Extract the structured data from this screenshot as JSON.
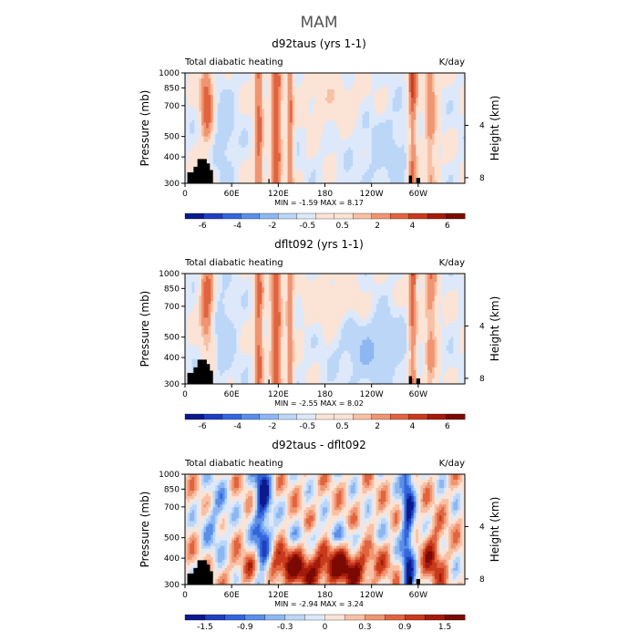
{
  "figure_title": "MAM",
  "colors": {
    "scale": [
      "#0a1a8c",
      "#1f3fbf",
      "#3366dd",
      "#5a8ee8",
      "#8db7f2",
      "#bcd6f7",
      "#dde9fa",
      "#fbe3d5",
      "#f8c0a4",
      "#f09572",
      "#e0643f",
      "#c83a1c",
      "#a51b0b",
      "#7a0a02"
    ],
    "ocean": "#ffffff",
    "terrain": "#000000"
  },
  "chart_data": [
    {
      "type": "heatmap",
      "title": "d92taus (yrs 1-1)",
      "subtitle_left": "Total diabatic heating",
      "subtitle_right": "K/day",
      "xlabel": "",
      "ylabel": "Pressure  (mb)",
      "ylabel_right": "Height  (km)",
      "x_ticks": [
        "0",
        "60E",
        "120E",
        "180",
        "120W",
        "60W"
      ],
      "x_tick_values": [
        0,
        60,
        120,
        180,
        240,
        300
      ],
      "xlim": [
        0,
        360
      ],
      "y_ticks": [
        "300",
        "400",
        "500",
        "700",
        "850",
        "1000"
      ],
      "y_tick_values": [
        300,
        400,
        500,
        700,
        850,
        1000
      ],
      "ylim": [
        1000,
        300
      ],
      "right_ticks": [
        "8",
        "4"
      ],
      "right_tick_values": [
        8,
        4
      ],
      "stats": "MIN =   -1.59   MAX =    8.17",
      "min": -1.59,
      "max": 8.17,
      "colorbar_labels": [
        "-6",
        "-4",
        "-2",
        "-0.5",
        "0.5",
        "2",
        "4",
        "6"
      ],
      "colorbar_levels": [
        -7,
        -6,
        -5,
        -4,
        -3,
        -2,
        -1,
        -0.5,
        0.5,
        1,
        2,
        3,
        4,
        5,
        6,
        7
      ],
      "heating_centers_lon": [
        28,
        95,
        117,
        135,
        295,
        315
      ]
    },
    {
      "type": "heatmap",
      "title": "dflt092 (yrs 1-1)",
      "subtitle_left": "Total diabatic heating",
      "subtitle_right": "K/day",
      "xlabel": "",
      "ylabel": "Pressure  (mb)",
      "ylabel_right": "Height  (km)",
      "x_ticks": [
        "0",
        "60E",
        "120E",
        "180",
        "120W",
        "60W"
      ],
      "x_tick_values": [
        0,
        60,
        120,
        180,
        240,
        300
      ],
      "xlim": [
        0,
        360
      ],
      "y_ticks": [
        "300",
        "400",
        "500",
        "700",
        "850",
        "1000"
      ],
      "y_tick_values": [
        300,
        400,
        500,
        700,
        850,
        1000
      ],
      "ylim": [
        1000,
        300
      ],
      "right_ticks": [
        "8",
        "4"
      ],
      "right_tick_values": [
        8,
        4
      ],
      "stats": "MIN =   -2.55   MAX =    8.02",
      "min": -2.55,
      "max": 8.02,
      "colorbar_labels": [
        "-6",
        "-4",
        "-2",
        "-0.5",
        "0.5",
        "2",
        "4",
        "6"
      ],
      "colorbar_levels": [
        -7,
        -6,
        -5,
        -4,
        -3,
        -2,
        -1,
        -0.5,
        0.5,
        1,
        2,
        3,
        4,
        5,
        6,
        7
      ],
      "heating_centers_lon": [
        28,
        95,
        117,
        135,
        295,
        315
      ]
    },
    {
      "type": "heatmap",
      "title": "d92taus - dflt092",
      "subtitle_left": "Total diabatic heating",
      "subtitle_right": "K/day",
      "xlabel": "",
      "ylabel": "Pressure  (mb)",
      "ylabel_right": "Height  (km)",
      "x_ticks": [
        "0",
        "60E",
        "120E",
        "180",
        "120W",
        "60W"
      ],
      "x_tick_values": [
        0,
        60,
        120,
        180,
        240,
        300
      ],
      "xlim": [
        0,
        360
      ],
      "y_ticks": [
        "300",
        "400",
        "500",
        "700",
        "850",
        "1000"
      ],
      "y_tick_values": [
        300,
        400,
        500,
        700,
        850,
        1000
      ],
      "ylim": [
        1000,
        300
      ],
      "right_ticks": [
        "8",
        "4"
      ],
      "right_tick_values": [
        8,
        4
      ],
      "stats": "MIN =   -2.94   MAX =    3.24",
      "min": -2.94,
      "max": 3.24,
      "colorbar_labels": [
        "-1.5",
        "-0.9",
        "-0.3",
        "0",
        "0.3",
        "0.9",
        "1.5"
      ],
      "colorbar_levels": [
        -2.1,
        -1.8,
        -1.5,
        -1.2,
        -0.9,
        -0.6,
        -0.3,
        0,
        0.3,
        0.6,
        0.9,
        1.2,
        1.5,
        1.8,
        2.1
      ],
      "heating_centers_lon": [
        100,
        120,
        160,
        200,
        225,
        320
      ]
    }
  ]
}
